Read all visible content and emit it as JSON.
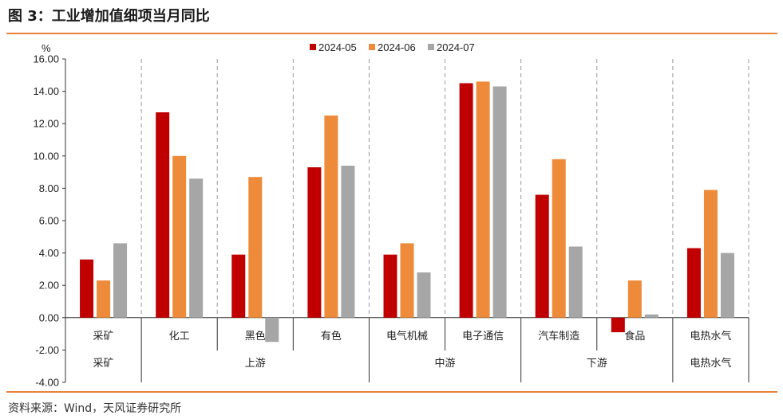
{
  "figure": {
    "title": "图 3：工业增加值细项当月同比",
    "source": "资料来源：Wind，天风证券研究所"
  },
  "colors": {
    "s1": "#C00000",
    "s2": "#ED8B3A",
    "s3": "#A6A6A6",
    "accent": "#E8823A"
  },
  "chart_data": {
    "type": "bar",
    "ylabel": "%",
    "ylim": [
      -4,
      16
    ],
    "yticks": [
      "16.00",
      "14.00",
      "12.00",
      "10.00",
      "8.00",
      "6.00",
      "4.00",
      "2.00",
      "0.00",
      "-2.00",
      "-4.00"
    ],
    "categories": [
      "采矿",
      "化工",
      "黑色",
      "有色",
      "电气机械",
      "电子通信",
      "汽车制造",
      "食品",
      "电热水气"
    ],
    "groups": [
      "采矿",
      "上游",
      "中游",
      "下游",
      "电热水气"
    ],
    "legend_position": "top",
    "grid": false,
    "series": [
      {
        "name": "2024-05",
        "values": [
          3.6,
          12.7,
          3.9,
          9.3,
          3.9,
          14.5,
          7.6,
          -0.9,
          4.3
        ]
      },
      {
        "name": "2024-06",
        "values": [
          2.3,
          10.0,
          8.7,
          12.5,
          4.6,
          14.6,
          9.8,
          2.3,
          7.9
        ]
      },
      {
        "name": "2024-07",
        "values": [
          4.6,
          8.6,
          -1.5,
          9.4,
          2.8,
          14.3,
          4.4,
          0.2,
          4.0
        ]
      }
    ]
  }
}
